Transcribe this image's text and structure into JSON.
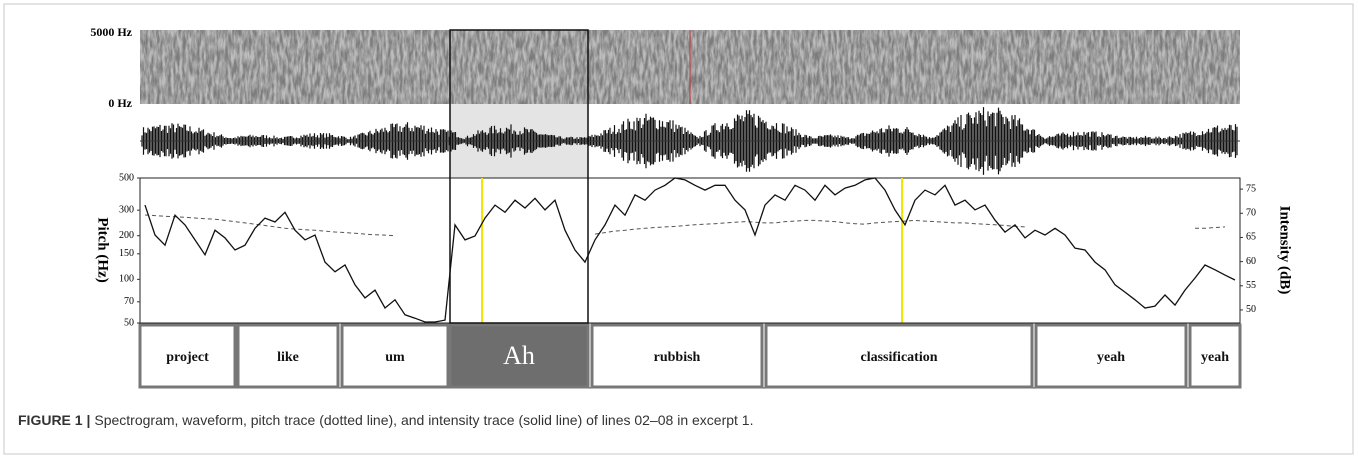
{
  "chart_data": {
    "type": "line",
    "spectrogram_labels": [
      "5000 Hz",
      "0 Hz"
    ],
    "ylabel": "Pitch (Hz)",
    "y2label": "Intensity (dB)",
    "ylog": true,
    "ylim": [
      50,
      500
    ],
    "yticks": [
      500,
      300,
      200,
      150,
      100,
      70,
      50
    ],
    "y2lim": [
      47.3,
      77.3
    ],
    "y2ticks": [
      75,
      70,
      65,
      60,
      55,
      50
    ],
    "series": [
      {
        "color": "#555555",
        "dashed": true,
        "values": [
          278,
          275,
          272,
          270,
          268,
          265,
          262,
          260,
          255,
          250,
          245,
          240,
          235,
          230,
          225,
          222,
          220,
          218,
          215,
          212,
          210,
          208,
          205,
          203,
          202,
          200,
          null,
          null,
          null,
          null,
          null,
          null,
          null,
          null,
          null,
          null,
          null,
          null,
          null,
          null,
          null,
          null,
          null,
          null,
          null,
          205,
          210,
          215,
          218,
          222,
          225,
          228,
          230,
          232,
          235,
          238,
          240,
          242,
          245,
          248,
          250,
          248,
          245,
          245,
          250,
          252,
          255,
          255,
          252,
          250,
          245,
          242,
          240,
          245,
          248,
          250,
          252,
          255,
          252,
          250,
          248,
          245,
          245,
          242,
          240,
          238,
          235,
          232,
          230,
          null,
          null,
          null,
          null,
          null,
          null,
          null,
          null,
          null,
          null,
          null,
          null,
          null,
          null,
          null,
          null,
          225,
          225,
          228,
          230,
          null
        ]
      },
      {
        "color": "#111111",
        "dashed": false,
        "axis": "y2",
        "values": [
          71.7,
          65.5,
          63.4,
          69.6,
          67.6,
          64.5,
          61.4,
          66.5,
          64.9,
          62.4,
          63.4,
          66.9,
          69,
          68.2,
          70.2,
          66.5,
          64.5,
          65.5,
          59.9,
          57.9,
          59.3,
          55.2,
          52.5,
          54.1,
          50.4,
          52.1,
          49,
          48.3,
          47.5,
          47.5,
          47.9,
          67.6,
          64.5,
          65.3,
          69,
          71.7,
          70.2,
          72.7,
          71.1,
          73.1,
          70.7,
          72.7,
          66.5,
          62.4,
          59.9,
          64.5,
          67.6,
          71.7,
          69.6,
          73.8,
          72.7,
          74.8,
          75.8,
          77.3,
          76.9,
          75.8,
          74.8,
          75.8,
          75.8,
          72.7,
          70.7,
          65.5,
          71.7,
          73.8,
          72.7,
          75.8,
          74.8,
          72.7,
          75.8,
          73.8,
          75.2,
          75.8,
          76.9,
          77.3,
          74.8,
          70.7,
          67.6,
          72.7,
          74.8,
          73.8,
          75.8,
          71.7,
          72.7,
          70.7,
          71.7,
          68.6,
          66.1,
          67.6,
          64.9,
          66.5,
          65.5,
          66.9,
          65.5,
          62.8,
          62.4,
          59.9,
          58.3,
          55.2,
          53.7,
          52.1,
          50.4,
          50.8,
          53.1,
          51,
          54.1,
          56.6,
          59.3,
          58.3,
          57.2,
          56.2
        ]
      }
    ],
    "words": [
      "project",
      "like",
      "um",
      "Ah",
      "rubbish",
      "classification",
      "yeah",
      "yeah"
    ],
    "figure_label": "FIGURE 1 |",
    "caption": "Spectrogram, waveform, pitch trace (dotted line), and intensity trace (solid line) of lines 02–08 in excerpt 1."
  }
}
